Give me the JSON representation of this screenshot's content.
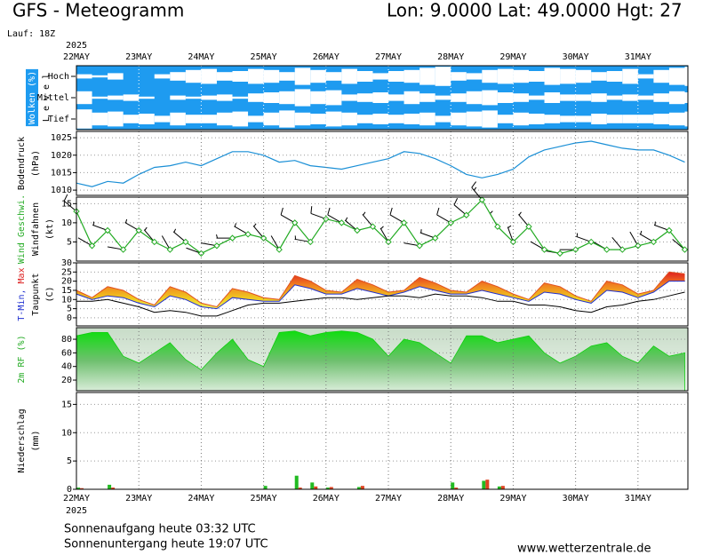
{
  "header": {
    "title": "GFS - Meteogramm",
    "location": "Lon: 9.0000  Lat: 49.0000  Hgt: 27",
    "run": "Lauf: 18Z"
  },
  "footer": {
    "sunrise": "Sonnenaufgang heute 03:32 UTC",
    "sunset": "Sonnenuntergang heute 19:07 UTC",
    "site": "www.wetterzentrale.de"
  },
  "chart_data": {
    "type": "meteogram",
    "year": "2025",
    "x": [
      0,
      0.25,
      0.5,
      0.75,
      1,
      1.25,
      1.5,
      1.75,
      2,
      2.25,
      2.5,
      2.75,
      3,
      3.25,
      3.5,
      3.75,
      4,
      4.25,
      4.5,
      4.75,
      5,
      5.25,
      5.5,
      5.75,
      6,
      6.25,
      6.5,
      6.75,
      7,
      7.25,
      7.5,
      7.75,
      8,
      8.25,
      8.5,
      8.75,
      9,
      9.25,
      9.5,
      9.75
    ],
    "xlim": [
      0,
      9.8
    ],
    "xticks": [
      {
        "value": 0,
        "label": "22MAY"
      },
      {
        "value": 1,
        "label": "23MAY"
      },
      {
        "value": 2,
        "label": "24MAY"
      },
      {
        "value": 3,
        "label": "25MAY"
      },
      {
        "value": 4,
        "label": "26MAY"
      },
      {
        "value": 5,
        "label": "27MAY"
      },
      {
        "value": 6,
        "label": "28MAY"
      },
      {
        "value": 7,
        "label": "29MAY"
      },
      {
        "value": 8,
        "label": "30MAY"
      },
      {
        "value": 9,
        "label": "31MAY"
      }
    ],
    "grid": true,
    "panels": [
      {
        "type": "clouds",
        "background": "#1e9bf0",
        "labels": [
          [
            {
              "text": "Wolken (%)",
              "color": "#ffffff"
            }
          ],
          [
            {
              "text": "L e v e l",
              "color": "#000000"
            }
          ]
        ],
        "series": [
          {
            "name": "Hoch",
            "color": "#ffffff",
            "values": [
              20,
              10,
              30,
              0,
              0,
              20,
              40,
              60,
              70,
              40,
              50,
              70,
              60,
              40,
              80,
              60,
              40,
              70,
              50,
              30,
              50,
              60,
              80,
              90,
              40,
              30,
              60,
              70,
              60,
              50,
              80,
              70,
              60,
              40,
              50,
              70,
              20,
              60,
              80,
              90
            ]
          },
          {
            "name": "Mittel",
            "color": "#ffffff",
            "values": [
              60,
              10,
              20,
              30,
              10,
              0,
              20,
              10,
              20,
              30,
              10,
              40,
              50,
              60,
              80,
              60,
              70,
              30,
              40,
              50,
              30,
              60,
              40,
              20,
              40,
              60,
              70,
              50,
              40,
              20,
              50,
              30,
              30,
              40,
              20,
              30,
              20,
              40,
              60,
              50
            ]
          },
          {
            "name": "Tief",
            "color": "#ffffff",
            "values": [
              90,
              60,
              70,
              40,
              50,
              30,
              60,
              40,
              40,
              60,
              70,
              30,
              60,
              80,
              60,
              50,
              70,
              60,
              40,
              50,
              40,
              50,
              60,
              30,
              60,
              70,
              80,
              40,
              60,
              50,
              40,
              30,
              30,
              50,
              40,
              40,
              40,
              50,
              60,
              70
            ]
          }
        ]
      },
      {
        "type": "line",
        "labels": [
          [
            {
              "text": "Bodendruck",
              "color": "#000000"
            }
          ],
          [
            {
              "text": "(hPa)",
              "color": "#000000"
            }
          ]
        ],
        "color": "#1a8fd6",
        "values": [
          1012,
          1011,
          1012.5,
          1012,
          1014.5,
          1016.5,
          1017,
          1018,
          1017,
          1019,
          1021,
          1021,
          1020,
          1018,
          1018.5,
          1017,
          1016.5,
          1016,
          1017,
          1018,
          1019,
          1021,
          1020.5,
          1019,
          1017,
          1014.5,
          1013.5,
          1014.5,
          1016,
          1019.5,
          1021.5,
          1022.5,
          1023.5,
          1024,
          1023,
          1022,
          1021.5,
          1021.5,
          1020,
          1018
        ],
        "ylim": [
          1008.5,
          1026.8
        ],
        "yticks": [
          1010,
          1015,
          1020,
          1025
        ]
      },
      {
        "type": "wind",
        "labels": [
          [
            {
              "text": "Wind Geschwi.",
              "color": "#22aa22"
            }
          ],
          [
            {
              "text": "Windfahnen",
              "color": "#000000"
            }
          ],
          [
            {
              "text": "(kt)",
              "color": "#000000"
            }
          ]
        ],
        "speed": {
          "color": "#22aa22",
          "values": [
            13,
            4,
            8,
            3,
            8,
            5,
            3,
            5,
            2,
            4,
            6,
            7,
            6,
            3,
            10,
            5,
            11,
            10,
            8,
            9,
            5,
            10,
            4,
            6,
            10,
            12,
            16,
            9,
            5,
            9,
            3,
            2,
            3,
            5,
            3,
            3,
            4,
            5,
            8,
            3
          ]
        },
        "direction": {
          "color": "#000000",
          "values": [
            310,
            300,
            290,
            280,
            300,
            320,
            330,
            310,
            290,
            280,
            270,
            300,
            320,
            330,
            300,
            280,
            290,
            300,
            310,
            320,
            330,
            300,
            280,
            290,
            300,
            310,
            320,
            330,
            340,
            320,
            300,
            280,
            270,
            290,
            300,
            320,
            330,
            300,
            290,
            310
          ]
        },
        "ylim": [
          0,
          16.7
        ],
        "yticks": [
          5,
          10,
          15
        ]
      },
      {
        "type": "temperature",
        "labels": [
          [
            {
              "text": "T-Min,",
              "color": "#2030d0"
            },
            {
              "text": " Max",
              "color": "#dd2222"
            }
          ],
          [
            {
              "text": "Taupunkt",
              "color": "#000000"
            }
          ],
          [
            {
              "text": "(C)",
              "color": "#000000"
            }
          ]
        ],
        "tmax": {
          "color": "#e05020",
          "values": [
            15,
            11,
            17,
            15,
            10,
            7,
            17,
            14,
            8,
            6,
            16,
            14,
            11,
            10,
            23,
            20,
            15,
            14,
            21,
            18,
            14,
            15,
            22,
            19,
            15,
            14,
            20,
            17,
            13,
            10,
            19,
            17,
            12,
            9,
            20,
            18,
            13,
            15,
            25,
            24
          ]
        },
        "tmin": {
          "color": "#2030d0",
          "values": [
            13,
            10,
            12,
            11,
            8,
            6,
            12,
            10,
            6,
            5,
            11,
            10,
            9,
            9,
            18,
            16,
            13,
            13,
            16,
            14,
            12,
            14,
            17,
            15,
            13,
            13,
            15,
            13,
            11,
            9,
            14,
            13,
            10,
            8,
            15,
            14,
            11,
            14,
            20,
            20
          ]
        },
        "dewpoint": {
          "color": "#000000",
          "values": [
            9,
            9,
            10,
            8,
            6,
            3,
            4,
            3,
            1,
            1,
            4,
            7,
            8,
            8,
            9,
            10,
            11,
            11,
            10,
            11,
            12,
            12,
            11,
            13,
            12,
            12,
            11,
            9,
            9,
            7,
            7,
            6,
            4,
            3,
            6,
            7,
            9,
            10,
            12,
            14
          ]
        },
        "ylim": [
          -4.4,
          30
        ],
        "yticks": [
          0,
          5,
          10,
          15,
          20,
          25,
          30
        ]
      },
      {
        "type": "area",
        "labels": [
          [
            {
              "text": "2m RF (%)",
              "color": "#22aa22"
            }
          ]
        ],
        "color": "#11cc11",
        "values": [
          85,
          90,
          90,
          55,
          45,
          60,
          75,
          50,
          35,
          60,
          80,
          50,
          40,
          90,
          92,
          85,
          90,
          92,
          90,
          80,
          55,
          80,
          75,
          60,
          45,
          85,
          85,
          75,
          80,
          85,
          60,
          45,
          55,
          70,
          75,
          55,
          45,
          70,
          55,
          60
        ],
        "ylim": [
          4.4,
          97
        ],
        "yticks": [
          20,
          40,
          60,
          80
        ]
      },
      {
        "type": "bar",
        "labels": [
          [
            {
              "text": "Niederschlag",
              "color": "#000000"
            }
          ],
          [
            {
              "text": "(mm)",
              "color": "#000000"
            }
          ]
        ],
        "series": [
          {
            "color": "#22bb22",
            "values": [
              0.3,
              0,
              0.8,
              0,
              0,
              0,
              0,
              0,
              0,
              0,
              0,
              0,
              0.6,
              0,
              2.4,
              1.2,
              0.3,
              0,
              0.4,
              0,
              0,
              0,
              0,
              0,
              1.2,
              0,
              1.5,
              0.5,
              0,
              0,
              0,
              0,
              0,
              0,
              0,
              0,
              0,
              0,
              0,
              0
            ]
          },
          {
            "color": "#dd4422",
            "values": [
              0.2,
              0,
              0.3,
              0,
              0,
              0,
              0,
              0,
              0,
              0,
              0,
              0,
              0,
              0,
              0.3,
              0.5,
              0.4,
              0,
              0.6,
              0,
              0,
              0,
              0,
              0,
              0.3,
              0,
              1.7,
              0.6,
              0,
              0,
              0,
              0,
              0,
              0,
              0,
              0,
              0,
              0,
              0,
              0
            ]
          }
        ],
        "ylim": [
          0,
          17.1
        ],
        "yticks": [
          0,
          5,
          10,
          15
        ]
      }
    ]
  }
}
